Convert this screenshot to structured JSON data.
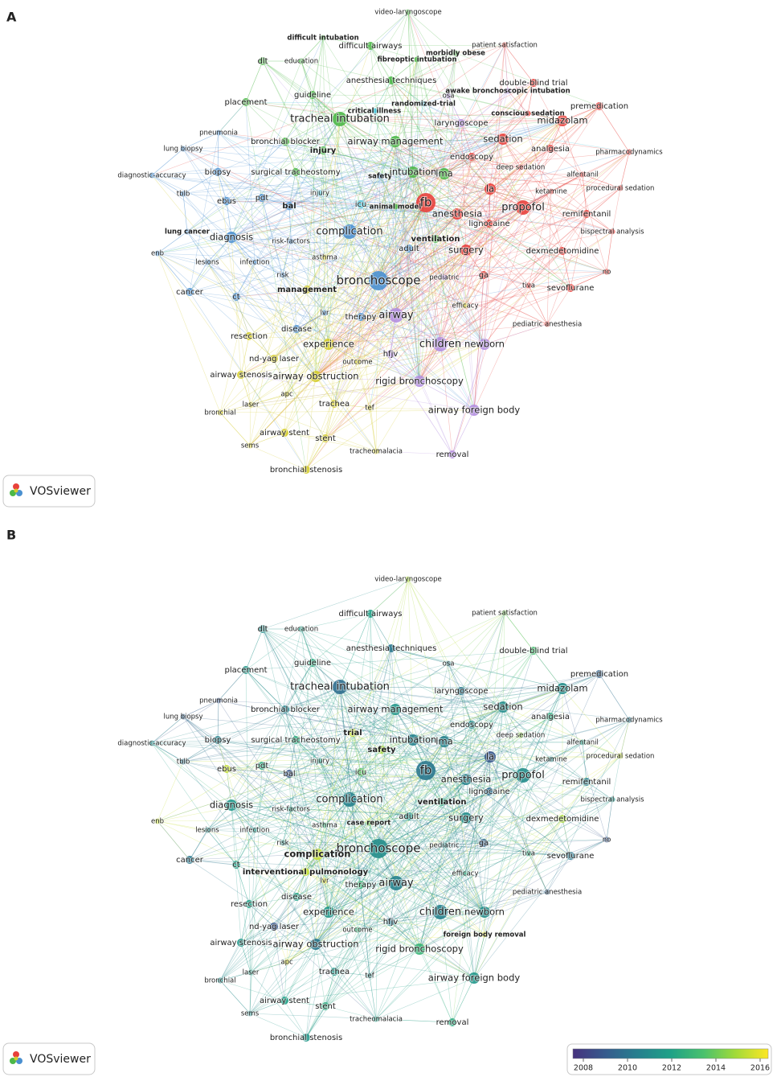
{
  "panels": [
    {
      "label": "A",
      "logo": "VOSviewer",
      "nodes": [
        "video-laryngoscope",
        "difficult intubation",
        "difficult airways",
        "morbidly obese",
        "fibreoptic intubation",
        "patient satisfaction",
        "dlt",
        "education",
        "anesthesia techniques",
        "double-blind trial",
        "awake bronchoscopic intubation",
        "osa",
        "premedication",
        "guideline",
        "placement",
        "randomized-trial",
        "critical illness",
        "conscious sedation",
        "tracheal intubation",
        "laryngoscope",
        "midazolam",
        "pneumonia",
        "bronchial blocker",
        "airway management",
        "sedation",
        "lung biopsy",
        "injury",
        "analgesia",
        "pharmacodynamics",
        "endoscopy",
        "diagnostic-accuracy",
        "biopsy",
        "surgical tracheostomy",
        "safety",
        "intubation",
        "lma",
        "deep sedation",
        "alfentanil",
        "tblb",
        "injury",
        "pdt",
        "ebus",
        "bal",
        "icu",
        "animal model",
        "fb",
        "la",
        "ketamine",
        "procedural sedation",
        "anesthesia",
        "propofol",
        "remifentanil",
        "lignocaine",
        "lung cancer",
        "diagnosis",
        "complication",
        "risk-factors",
        "ventilation",
        "bispectral analysis",
        "enb",
        "adult",
        "surgery",
        "dexmedetomidine",
        "lesions",
        "infection",
        "asthma",
        "risk",
        "ga",
        "no",
        "pediatric",
        "bronchoscope",
        "management",
        "cancer",
        "ct",
        "tiva",
        "sevoflurane",
        "lvr",
        "therapy",
        "airway",
        "efficacy",
        "disease",
        "pediatric anesthesia",
        "resection",
        "experience",
        "children",
        "newborn",
        "nd-yag laser",
        "outcome",
        "hfjv",
        "airway stenosis",
        "airway obstruction",
        "rigid bronchoscopy",
        "apc",
        "laser",
        "trachea",
        "tef",
        "airway foreign body",
        "bronchial",
        "airway stent",
        "stent",
        "sems",
        "tracheomalacia",
        "removal",
        "bronchial stenosis"
      ]
    },
    {
      "label": "B",
      "logo": "VOSviewer",
      "nodes": [
        "video-laryngoscope",
        "difficult airways",
        "patient satisfaction",
        "dlt",
        "education",
        "anesthesia techniques",
        "double-blind trial",
        "osa",
        "premedication",
        "guideline",
        "placement",
        "tracheal intubation",
        "laryngoscope",
        "midazolam",
        "pneumonia",
        "bronchial blocker",
        "airway management",
        "sedation",
        "lung biopsy",
        "analgesia",
        "pharmacodynamics",
        "endoscopy",
        "trial",
        "diagnostic-accuracy",
        "biopsy",
        "surgical tracheostomy",
        "intubation",
        "lma",
        "deep sedation",
        "alfentanil",
        "safety",
        "procedural sedation",
        "tblb",
        "injury",
        "ketamine",
        "ebus",
        "pdt",
        "bal",
        "icu",
        "fb",
        "la",
        "anesthesia",
        "propofol",
        "remifentanil",
        "lignocaine",
        "diagnosis",
        "complication",
        "ventilation",
        "bispectral analysis",
        "risk-factors",
        "enb",
        "adult",
        "surgery",
        "dexmedetomidine",
        "lesions",
        "infection",
        "asthma",
        "case report",
        "risk",
        "ga",
        "no",
        "pediatric",
        "bronchoscope",
        "complication",
        "cancer",
        "tiva",
        "sevoflurane",
        "ct",
        "interventional pulmonology",
        "lvr",
        "therapy",
        "airway",
        "efficacy",
        "disease",
        "pediatric anesthesia",
        "resection",
        "experience",
        "children",
        "newborn",
        "nd-yag laser",
        "outcome",
        "hfjv",
        "foreign body removal",
        "airway stenosis",
        "airway obstruction",
        "rigid bronchoscopy",
        "apc",
        "laser",
        "trachea",
        "tef",
        "airway foreign body",
        "bronchial",
        "airway stent",
        "stent",
        "sems",
        "tracheomalacia",
        "removal",
        "bronchial stenosis"
      ],
      "colorbar_ticks": [
        2008,
        2010,
        2012,
        2014,
        2016
      ]
    }
  ]
}
